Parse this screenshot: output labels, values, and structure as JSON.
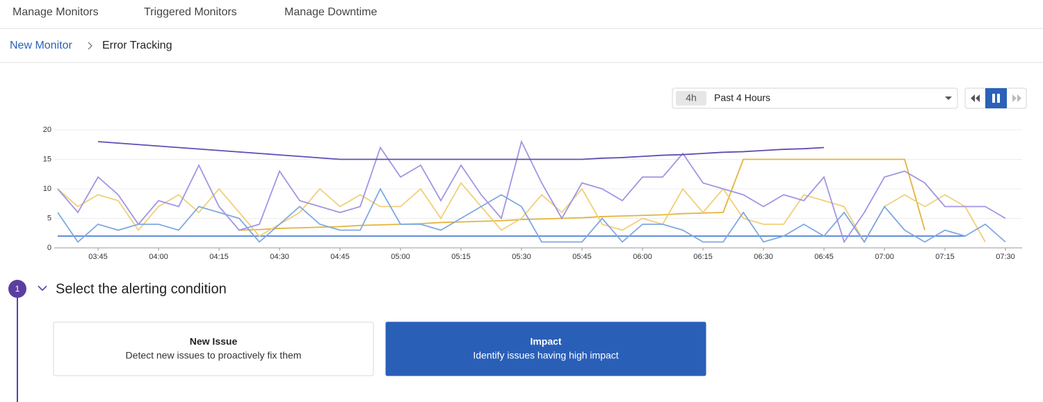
{
  "nav": {
    "tabs": [
      "Manage Monitors",
      "Triggered Monitors",
      "Manage Downtime"
    ]
  },
  "breadcrumb": {
    "parent": "New Monitor",
    "current": "Error Tracking"
  },
  "time_picker": {
    "badge": "4h",
    "label": "Past 4 Hours"
  },
  "chart_data": {
    "type": "line",
    "categories": [
      null,
      null,
      "03:45",
      null,
      null,
      "04:00",
      null,
      null,
      "04:15",
      null,
      null,
      "04:30",
      null,
      null,
      "04:45",
      null,
      null,
      "05:00",
      null,
      null,
      "05:15",
      null,
      null,
      "05:30",
      null,
      null,
      "05:45",
      null,
      null,
      "06:00",
      null,
      null,
      "06:15",
      null,
      null,
      "06:30",
      null,
      null,
      "06:45",
      null,
      null,
      "07:00",
      null,
      null,
      "07:15",
      null,
      null,
      "07:30"
    ],
    "series": [
      {
        "color": "#4a80d4",
        "values": [
          2,
          2,
          2,
          2,
          2,
          2,
          2,
          2,
          2,
          2,
          2,
          2,
          2,
          2,
          2,
          2,
          2,
          2,
          2,
          2,
          2,
          2,
          2,
          2,
          2,
          2,
          2,
          2,
          2,
          2,
          2,
          2,
          2,
          2,
          2,
          2,
          2,
          2,
          2,
          2,
          2,
          2,
          2,
          2,
          2,
          2,
          null,
          null
        ]
      },
      {
        "color": "#e2b43c",
        "values": [
          null,
          null,
          null,
          null,
          null,
          null,
          null,
          null,
          null,
          3,
          3.1,
          3.3,
          3.4,
          3.5,
          3.6,
          3.8,
          3.9,
          4,
          4.1,
          4.3,
          4.4,
          4.5,
          4.6,
          4.8,
          4.9,
          5,
          5.1,
          5.3,
          5.4,
          5.5,
          5.6,
          5.8,
          5.9,
          6,
          15,
          15,
          15,
          15,
          15,
          15,
          15,
          15,
          15,
          3,
          null,
          null,
          null,
          null
        ]
      },
      {
        "color": "#f0cf7a",
        "values": [
          10,
          7,
          9,
          8,
          3,
          7,
          9,
          6,
          10,
          6,
          2,
          4,
          6,
          10,
          7,
          9,
          7,
          7,
          10,
          5,
          11,
          7,
          3,
          5,
          9,
          6,
          10,
          4,
          3,
          5,
          4,
          10,
          6,
          10,
          5,
          4,
          4,
          9,
          8,
          7,
          1,
          7,
          9,
          7,
          9,
          7,
          1,
          null
        ]
      },
      {
        "color": "#7ea8e2",
        "values": [
          6,
          1,
          4,
          3,
          4,
          4,
          3,
          7,
          6,
          5,
          1,
          4,
          7,
          4,
          3,
          3,
          10,
          4,
          4,
          3,
          5,
          7,
          9,
          7,
          1,
          1,
          1,
          5,
          1,
          4,
          4,
          3,
          1,
          1,
          6,
          1,
          2,
          4,
          2,
          6,
          1,
          7,
          3,
          1,
          3,
          2,
          4,
          1
        ]
      },
      {
        "color": "#a195e4",
        "values": [
          10,
          6,
          12,
          9,
          4,
          8,
          7,
          14,
          7,
          3,
          4,
          13,
          8,
          7,
          6,
          7,
          17,
          12,
          14,
          8,
          14,
          9,
          5,
          18,
          11,
          5,
          11,
          10,
          8,
          12,
          12,
          16,
          11,
          10,
          9,
          7,
          9,
          8,
          12,
          1,
          6,
          12,
          13,
          11,
          7,
          7,
          7,
          5
        ]
      },
      {
        "color": "#5f4db4",
        "values": [
          null,
          null,
          18,
          17.75,
          17.5,
          17.25,
          17,
          16.75,
          16.5,
          16.25,
          16,
          15.75,
          15.5,
          15.25,
          15,
          15,
          15,
          15,
          15,
          15,
          15,
          15,
          15,
          15,
          15,
          15,
          15,
          15.2,
          15.3,
          15.5,
          15.7,
          15.8,
          16,
          16.2,
          16.3,
          16.5,
          16.7,
          16.8,
          17,
          null,
          null,
          null,
          null,
          null,
          null,
          null,
          null,
          null
        ]
      }
    ],
    "ylim": [
      0,
      20
    ],
    "yticks": [
      0,
      5,
      10,
      15,
      20
    ],
    "grid": true
  },
  "step": {
    "number": 1,
    "title": "Select the alerting condition"
  },
  "cards": [
    {
      "title": "New Issue",
      "description": "Detect new issues to proactively fix them",
      "selected": false
    },
    {
      "title": "Impact",
      "description": "Identify issues having high impact",
      "selected": true
    }
  ]
}
